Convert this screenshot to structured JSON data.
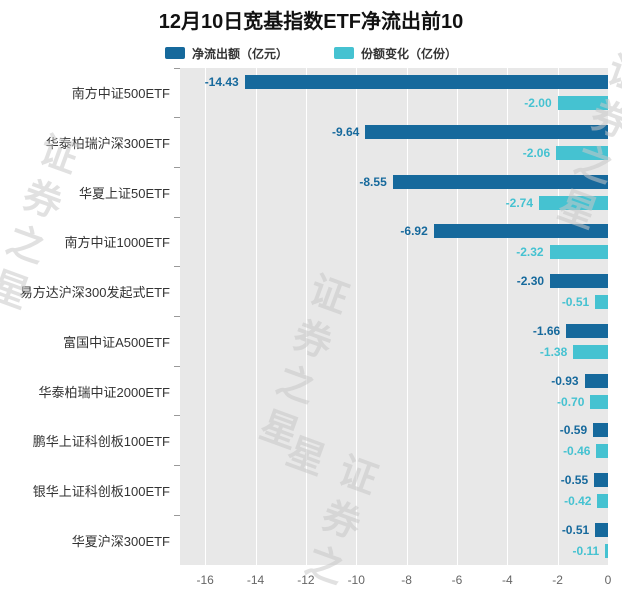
{
  "title": "12月10日宽基指数ETF净流出前10",
  "watermark": "证券之星",
  "legend": [
    {
      "label": "净流出额（亿元）",
      "color": "#16699c"
    },
    {
      "label": "份额变化（亿份）",
      "color": "#45c2d1"
    }
  ],
  "chart_data": {
    "type": "bar",
    "orientation": "horizontal",
    "title": "12月10日宽基指数ETF净流出前10",
    "categories": [
      "南方中证500ETF",
      "华泰柏瑞沪深300ETF",
      "华夏上证50ETF",
      "南方中证1000ETF",
      "易方达沪深300发起式ETF",
      "富国中证A500ETF",
      "华泰柏瑞中证2000ETF",
      "鹏华上证科创板100ETF",
      "银华上证科创板100ETF",
      "华夏沪深300ETF"
    ],
    "series": [
      {
        "name": "净流出额（亿元）",
        "color": "#16699c",
        "values": [
          -14.43,
          -9.64,
          -8.55,
          -6.92,
          -2.3,
          -1.66,
          -0.93,
          -0.59,
          -0.55,
          -0.51
        ]
      },
      {
        "name": "份额变化（亿份）",
        "color": "#45c2d1",
        "values": [
          -2.0,
          -2.06,
          -2.74,
          -2.32,
          -0.51,
          -1.38,
          -0.7,
          -0.46,
          -0.42,
          -0.11
        ]
      }
    ],
    "xlim": [
      -17,
      0
    ],
    "xticks": [
      -16,
      -14,
      -12,
      -10,
      -8,
      -6,
      -4,
      -2,
      0
    ],
    "grid": true,
    "plot_background": "#e8e8e8",
    "legend_position": "top"
  }
}
